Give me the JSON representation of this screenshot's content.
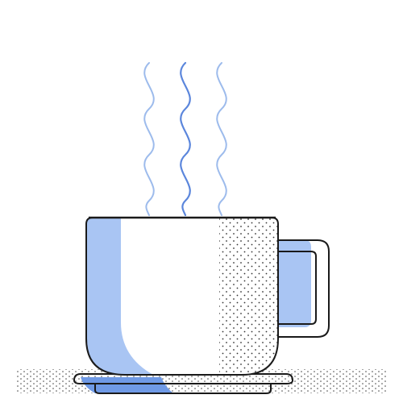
{
  "colors": {
    "background": "#ffffff",
    "outline": "#1a1a1a",
    "steam_light": "#9dbbec",
    "steam_dark": "#5b86dc",
    "cup_highlight": "#a9c5f3",
    "saucer_highlight": "#6f9ae6",
    "stipple": "#333333",
    "table_dots": "#444444"
  },
  "icons": {
    "cup": "coffee-cup-icon",
    "steam": "steam-icon",
    "saucer": "saucer-icon"
  }
}
